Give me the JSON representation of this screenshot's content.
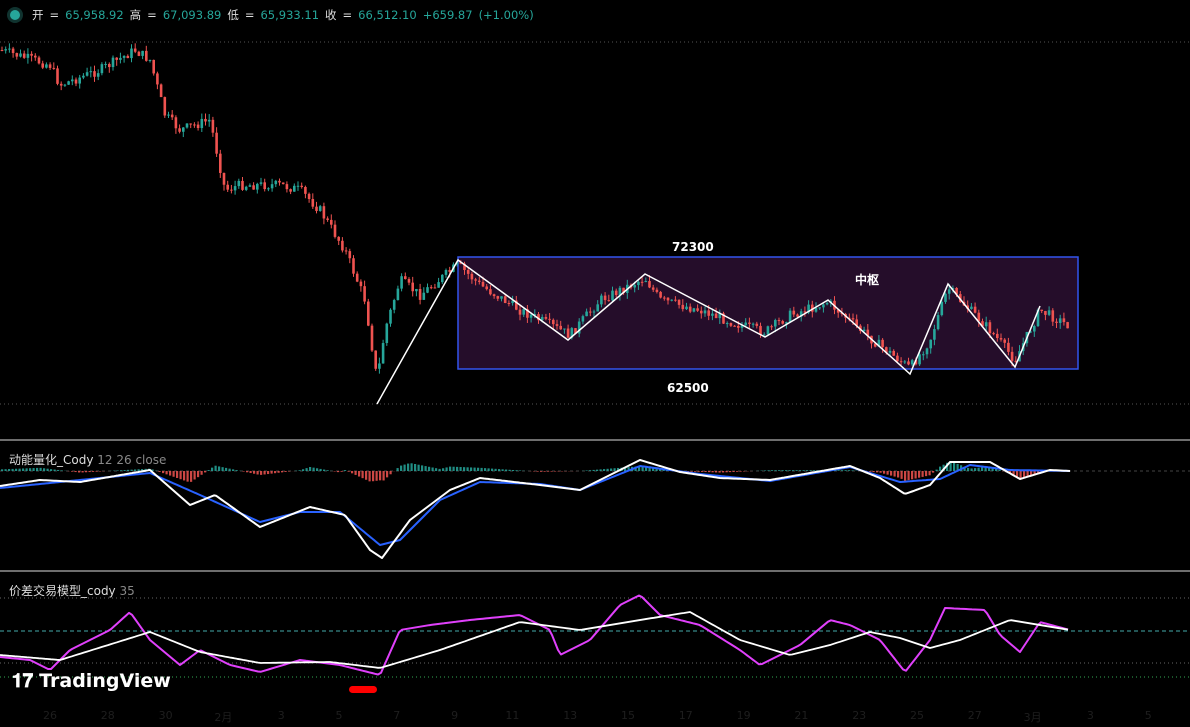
{
  "symbol_status_color": "#26a69a",
  "ohlc": {
    "open_label": "开",
    "open": "65,958.92",
    "high_label": "高",
    "high": "67,093.89",
    "low_label": "低",
    "low": "65,933.11",
    "close_label": "收",
    "close": "66,512.10",
    "change": "+659.87",
    "change_pct": "(+1.00%)"
  },
  "annotations": {
    "box_top": "72300",
    "box_bottom": "62500",
    "box_label": "中枢"
  },
  "indicator1": {
    "name": "动能量化_Cody",
    "params": "12 26 close"
  },
  "indicator2": {
    "name": "价差交易模型_cody",
    "params": "35"
  },
  "x_axis": [
    "26",
    "28",
    "30",
    "2月",
    "3",
    "5",
    "7",
    "9",
    "11",
    "13",
    "15",
    "17",
    "19",
    "21",
    "23",
    "25",
    "27",
    "3月",
    "3",
    "5"
  ],
  "logo": "TradingView",
  "colors": {
    "up": "#26a69a",
    "down": "#ef5350",
    "box_border": "#3355ee",
    "box_fill": "#250d2a",
    "macd": "#ffffff",
    "signal": "#2962ff",
    "spread": "#e040fb"
  }
}
